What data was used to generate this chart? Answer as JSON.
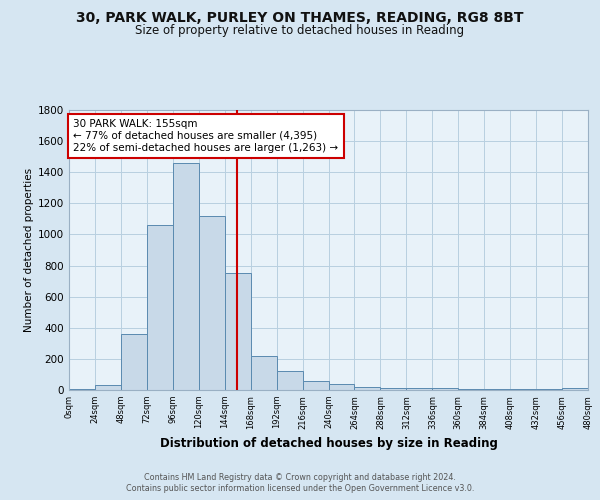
{
  "title_line1": "30, PARK WALK, PURLEY ON THAMES, READING, RG8 8BT",
  "title_line2": "Size of property relative to detached houses in Reading",
  "xlabel": "Distribution of detached houses by size in Reading",
  "ylabel": "Number of detached properties",
  "bin_edges": [
    0,
    24,
    48,
    72,
    96,
    120,
    144,
    168,
    192,
    216,
    240,
    264,
    288,
    312,
    336,
    360,
    384,
    408,
    432,
    456,
    480
  ],
  "bar_heights": [
    5,
    35,
    360,
    1060,
    1460,
    1120,
    750,
    220,
    125,
    55,
    40,
    20,
    15,
    12,
    10,
    8,
    8,
    5,
    5,
    10
  ],
  "bar_facecolor": "#c8d9e8",
  "bar_edgecolor": "#5a8ab0",
  "property_size": 155,
  "red_line_color": "#cc0000",
  "annotation_line1": "30 PARK WALK: 155sqm",
  "annotation_line2": "← 77% of detached houses are smaller (4,395)",
  "annotation_line3": "22% of semi-detached houses are larger (1,263) →",
  "annotation_box_edgecolor": "#cc0000",
  "annotation_fontsize": 7.5,
  "grid_color": "#b8cfe0",
  "background_color": "#d6e6f2",
  "plot_bg_color": "#e8f2f9",
  "footer_line1": "Contains HM Land Registry data © Crown copyright and database right 2024.",
  "footer_line2": "Contains public sector information licensed under the Open Government Licence v3.0.",
  "ylim": [
    0,
    1800
  ],
  "xlim": [
    0,
    480
  ]
}
